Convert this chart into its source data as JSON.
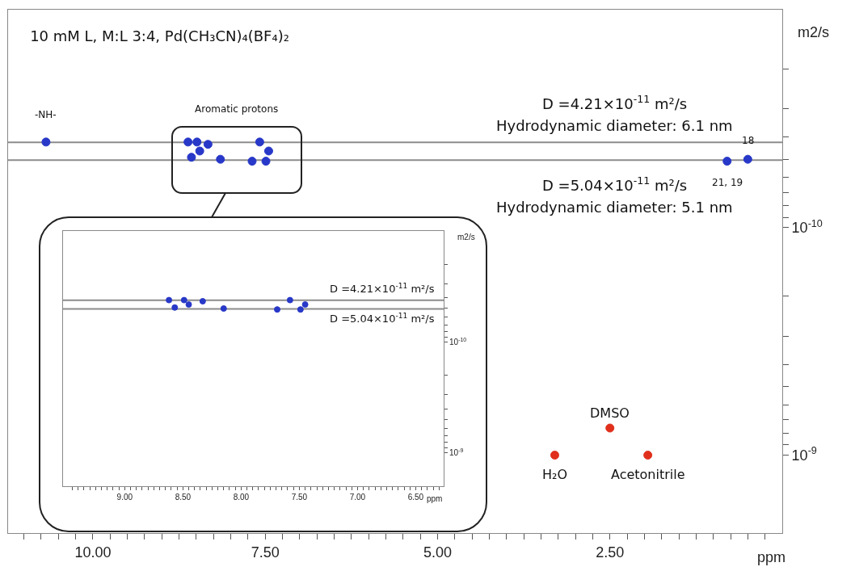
{
  "chart_data": [
    {
      "type": "scatter",
      "title": "10 mM L, M:L 3:4, Pd(CH₃CN)₄(BF₄)₂",
      "xlabel": "ppm",
      "ylabel": "m2/s",
      "log": "y",
      "marker": "circle",
      "series": [
        {
          "color": "#2838c8",
          "x": [
            10.68,
            8.62,
            8.57,
            8.49,
            8.45,
            8.33,
            8.15,
            7.69,
            7.58,
            7.49,
            7.45,
            0.8,
            0.5
          ],
          "values": [
            4.2e-11,
            4.2e-11,
            4.9e-11,
            4.2e-11,
            4.6e-11,
            4.3e-11,
            5e-11,
            5.1e-11,
            4.2e-11,
            5.1e-11,
            4.6e-11,
            5.1e-11,
            5e-11
          ]
        },
        {
          "color": "#e0301c",
          "x": [
            3.3,
            2.5,
            1.95
          ],
          "values": [
            1e-09,
            7.6e-10,
            1e-09
          ]
        }
      ],
      "xlim": [
        11.23,
        0
      ],
      "ylim": [
        2.2e-09,
        1.1e-11
      ],
      "xticks": [
        {
          "value": 11,
          "label": null
        },
        {
          "value": 10.75,
          "label": null
        },
        {
          "value": 10.5,
          "label": null
        },
        {
          "value": 10.25,
          "label": null
        },
        {
          "value": 10,
          "label": "10.00"
        },
        {
          "value": 9.75,
          "label": null
        },
        {
          "value": 9.5,
          "label": null
        },
        {
          "value": 9.25,
          "label": null
        },
        {
          "value": 9,
          "label": null
        },
        {
          "value": 8.75,
          "label": null
        },
        {
          "value": 8.5,
          "label": null
        },
        {
          "value": 8.25,
          "label": null
        },
        {
          "value": 8,
          "label": null
        },
        {
          "value": 7.75,
          "label": null
        },
        {
          "value": 7.5,
          "label": "7.50"
        },
        {
          "value": 7.25,
          "label": null
        },
        {
          "value": 7,
          "label": null
        },
        {
          "value": 6.75,
          "label": null
        },
        {
          "value": 6.5,
          "label": null
        },
        {
          "value": 6.25,
          "label": null
        },
        {
          "value": 6,
          "label": null
        },
        {
          "value": 5.75,
          "label": null
        },
        {
          "value": 5.5,
          "label": null
        },
        {
          "value": 5.25,
          "label": null
        },
        {
          "value": 5,
          "label": "5.00"
        },
        {
          "value": 4.75,
          "label": null
        },
        {
          "value": 4.5,
          "label": null
        },
        {
          "value": 4.25,
          "label": null
        },
        {
          "value": 4,
          "label": null
        },
        {
          "value": 3.75,
          "label": null
        },
        {
          "value": 3.5,
          "label": null
        },
        {
          "value": 3.25,
          "label": null
        },
        {
          "value": 3,
          "label": null
        },
        {
          "value": 2.75,
          "label": null
        },
        {
          "value": 2.5,
          "label": "2.50"
        },
        {
          "value": 2.25,
          "label": null
        },
        {
          "value": 2,
          "label": null
        },
        {
          "value": 1.75,
          "label": null
        },
        {
          "value": 1.5,
          "label": null
        },
        {
          "value": 1.25,
          "label": null
        },
        {
          "value": 1,
          "label": null
        },
        {
          "value": 0.75,
          "label": null
        },
        {
          "value": 0.5,
          "label": null
        },
        {
          "value": 0.25,
          "label": null
        }
      ],
      "yticks": [
        {
          "value": 2e-11,
          "label": null
        },
        {
          "value": 3e-11,
          "label": null
        },
        {
          "value": 4e-11,
          "label": null
        },
        {
          "value": 5e-11,
          "label": null
        },
        {
          "value": 6e-11,
          "label": null
        },
        {
          "value": 7e-11,
          "label": null
        },
        {
          "value": 8e-11,
          "label": null
        },
        {
          "value": 9e-11,
          "label": null
        },
        {
          "value": 1e-10,
          "label": "10$^{-10}$"
        },
        {
          "value": 2e-10,
          "label": null
        },
        {
          "value": 3e-10,
          "label": null
        },
        {
          "value": 4e-10,
          "label": null
        },
        {
          "value": 5e-10,
          "label": null
        },
        {
          "value": 6e-10,
          "label": null
        },
        {
          "value": 7e-10,
          "label": null
        },
        {
          "value": 8e-10,
          "label": null
        },
        {
          "value": 9e-10,
          "label": null
        },
        {
          "value": 1e-09,
          "label": "10$^{-9}$"
        }
      ],
      "ref_lines": [
        {
          "axis": "y",
          "value": 4.21e-11,
          "color": "#8c8c8c"
        },
        {
          "axis": "y",
          "value": 5.04e-11,
          "color": "#8c8c8c"
        }
      ],
      "annotations": [
        "D =4.21×10$^{-11}$ m²/s",
        "D =5.04×10$^{-11}$ m²/s",
        {
          "text": "-NH-",
          "x": 10.68,
          "y": 4.2e-11
        },
        {
          "text": "Aromatic protons",
          "x": 7.92,
          "y": 4.2e-11
        },
        {
          "text": "18",
          "x": 0.5,
          "y": 5e-11
        },
        {
          "text": "21, 19",
          "x": 0.8,
          "y": 5.1e-11
        },
        {
          "text": "DMSO",
          "x": 2.5,
          "y": 7.6e-10
        },
        {
          "text": "H₂O",
          "x": 3.3,
          "y": 1e-09
        },
        {
          "text": "Acetonitrile",
          "x": 1.95,
          "y": 1e-09
        },
        "Hydrodynamic diameter: 6.1 nm",
        "Hydrodynamic diameter: 5.1 nm"
      ]
    },
    {
      "type": "scatter",
      "xlabel": "ppm",
      "ylabel": "m2/s",
      "log": "y",
      "marker": "circle",
      "series": [
        {
          "color": "#2838c8",
          "x": [
            8.62,
            8.57,
            8.49,
            8.45,
            8.33,
            8.15,
            7.69,
            7.58,
            7.49,
            7.45
          ],
          "values": [
            4.2e-11,
            4.9e-11,
            4.2e-11,
            4.6e-11,
            4.3e-11,
            5e-11,
            5.1e-11,
            4.2e-11,
            5.1e-11,
            4.6e-11
          ]
        }
      ],
      "xlim": [
        9.53,
        6.26
      ],
      "ylim": [
        2e-09,
        1e-11
      ],
      "xticks": [
        {
          "value": 9.45,
          "label": null
        },
        {
          "value": 9.4,
          "label": null
        },
        {
          "value": 9.35,
          "label": null
        },
        {
          "value": 9.3,
          "label": null
        },
        {
          "value": 9.25,
          "label": null
        },
        {
          "value": 9.2,
          "label": null
        },
        {
          "value": 9.15,
          "label": null
        },
        {
          "value": 9.1,
          "label": null
        },
        {
          "value": 9.05,
          "label": null
        },
        {
          "value": 9,
          "label": "9.00"
        },
        {
          "value": 8.95,
          "label": null
        },
        {
          "value": 8.9,
          "label": null
        },
        {
          "value": 8.85,
          "label": null
        },
        {
          "value": 8.8,
          "label": null
        },
        {
          "value": 8.75,
          "label": null
        },
        {
          "value": 8.7,
          "label": null
        },
        {
          "value": 8.65,
          "label": null
        },
        {
          "value": 8.6,
          "label": null
        },
        {
          "value": 8.55,
          "label": null
        },
        {
          "value": 8.5,
          "label": "8.50"
        },
        {
          "value": 8.45,
          "label": null
        },
        {
          "value": 8.4,
          "label": null
        },
        {
          "value": 8.35,
          "label": null
        },
        {
          "value": 8.3,
          "label": null
        },
        {
          "value": 8.25,
          "label": null
        },
        {
          "value": 8.2,
          "label": null
        },
        {
          "value": 8.15,
          "label": null
        },
        {
          "value": 8.1,
          "label": null
        },
        {
          "value": 8.05,
          "label": null
        },
        {
          "value": 8,
          "label": "8.00"
        },
        {
          "value": 7.95,
          "label": null
        },
        {
          "value": 7.9,
          "label": null
        },
        {
          "value": 7.85,
          "label": null
        },
        {
          "value": 7.8,
          "label": null
        },
        {
          "value": 7.75,
          "label": null
        },
        {
          "value": 7.7,
          "label": null
        },
        {
          "value": 7.65,
          "label": null
        },
        {
          "value": 7.6,
          "label": null
        },
        {
          "value": 7.55,
          "label": null
        },
        {
          "value": 7.5,
          "label": "7.50"
        },
        {
          "value": 7.45,
          "label": null
        },
        {
          "value": 7.4,
          "label": null
        },
        {
          "value": 7.35,
          "label": null
        },
        {
          "value": 7.3,
          "label": null
        },
        {
          "value": 7.25,
          "label": null
        },
        {
          "value": 7.2,
          "label": null
        },
        {
          "value": 7.15,
          "label": null
        },
        {
          "value": 7.1,
          "label": null
        },
        {
          "value": 7.05,
          "label": null
        },
        {
          "value": 7,
          "label": "7.00"
        },
        {
          "value": 6.95,
          "label": null
        },
        {
          "value": 6.9,
          "label": null
        },
        {
          "value": 6.85,
          "label": null
        },
        {
          "value": 6.8,
          "label": null
        },
        {
          "value": 6.75,
          "label": null
        },
        {
          "value": 6.7,
          "label": null
        },
        {
          "value": 6.65,
          "label": null
        },
        {
          "value": 6.6,
          "label": null
        },
        {
          "value": 6.55,
          "label": null
        },
        {
          "value": 6.5,
          "label": "6.50"
        },
        {
          "value": 6.45,
          "label": null
        },
        {
          "value": 6.4,
          "label": null
        },
        {
          "value": 6.35,
          "label": null
        },
        {
          "value": 6.3,
          "label": null
        }
      ],
      "yticks": [
        {
          "value": 2e-11,
          "label": null
        },
        {
          "value": 3e-11,
          "label": null
        },
        {
          "value": 4e-11,
          "label": null
        },
        {
          "value": 5e-11,
          "label": null
        },
        {
          "value": 6e-11,
          "label": null
        },
        {
          "value": 7e-11,
          "label": null
        },
        {
          "value": 8e-11,
          "label": null
        },
        {
          "value": 9e-11,
          "label": null
        },
        {
          "value": 1e-10,
          "label": "10$^{-10}$"
        },
        {
          "value": 2e-10,
          "label": null
        },
        {
          "value": 3e-10,
          "label": null
        },
        {
          "value": 4e-10,
          "label": null
        },
        {
          "value": 5e-10,
          "label": null
        },
        {
          "value": 6e-10,
          "label": null
        },
        {
          "value": 7e-10,
          "label": null
        },
        {
          "value": 8e-10,
          "label": null
        },
        {
          "value": 9e-10,
          "label": null
        },
        {
          "value": 1e-09,
          "label": "10$^{-9}$"
        }
      ],
      "ref_lines": [
        {
          "axis": "y",
          "value": 4.21e-11,
          "color": "#8c8c8c"
        },
        {
          "axis": "y",
          "value": 5.04e-11,
          "color": "#8c8c8c"
        }
      ],
      "annotations": [
        "D =4.21×10$^{-11}$ m²/s",
        "D =5.04×10$^{-11}$ m²/s"
      ]
    }
  ]
}
